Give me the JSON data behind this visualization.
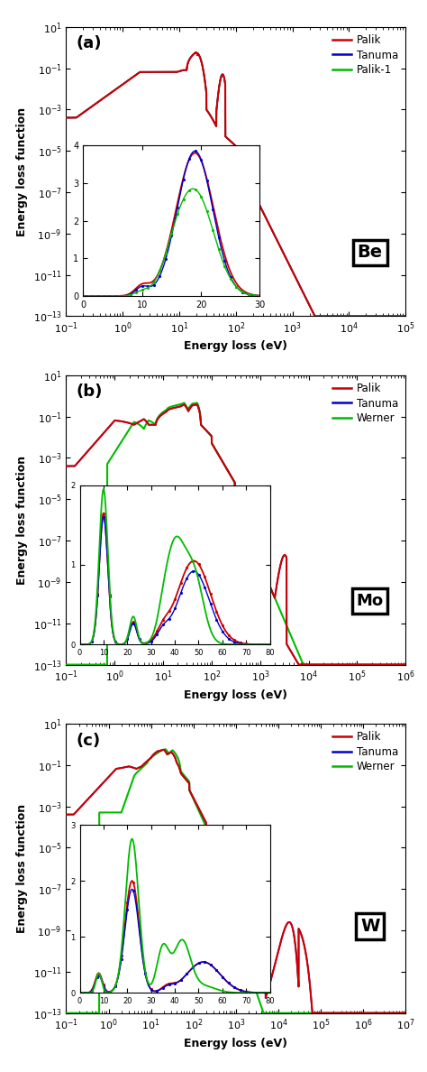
{
  "panel_labels": [
    "(a)",
    "(b)",
    "(c)"
  ],
  "element_labels": [
    "Be",
    "Mo",
    "W"
  ],
  "legend_labels_a": [
    "Palik",
    "Tanuma",
    "Palik-1"
  ],
  "legend_labels_bc": [
    "Palik",
    "Tanuma",
    "Werner"
  ],
  "colors": {
    "palik": "#cc0000",
    "tanuma": "#0000cc",
    "green": "#00bb00"
  },
  "ylabel": "Energy loss function",
  "xlabel": "Energy loss (eV)",
  "ylim_log": [
    1e-13,
    10
  ],
  "xlim_a": [
    0.1,
    100000.0
  ],
  "xlim_b": [
    0.1,
    1000000.0
  ],
  "xlim_c": [
    0.1,
    10000000.0
  ]
}
